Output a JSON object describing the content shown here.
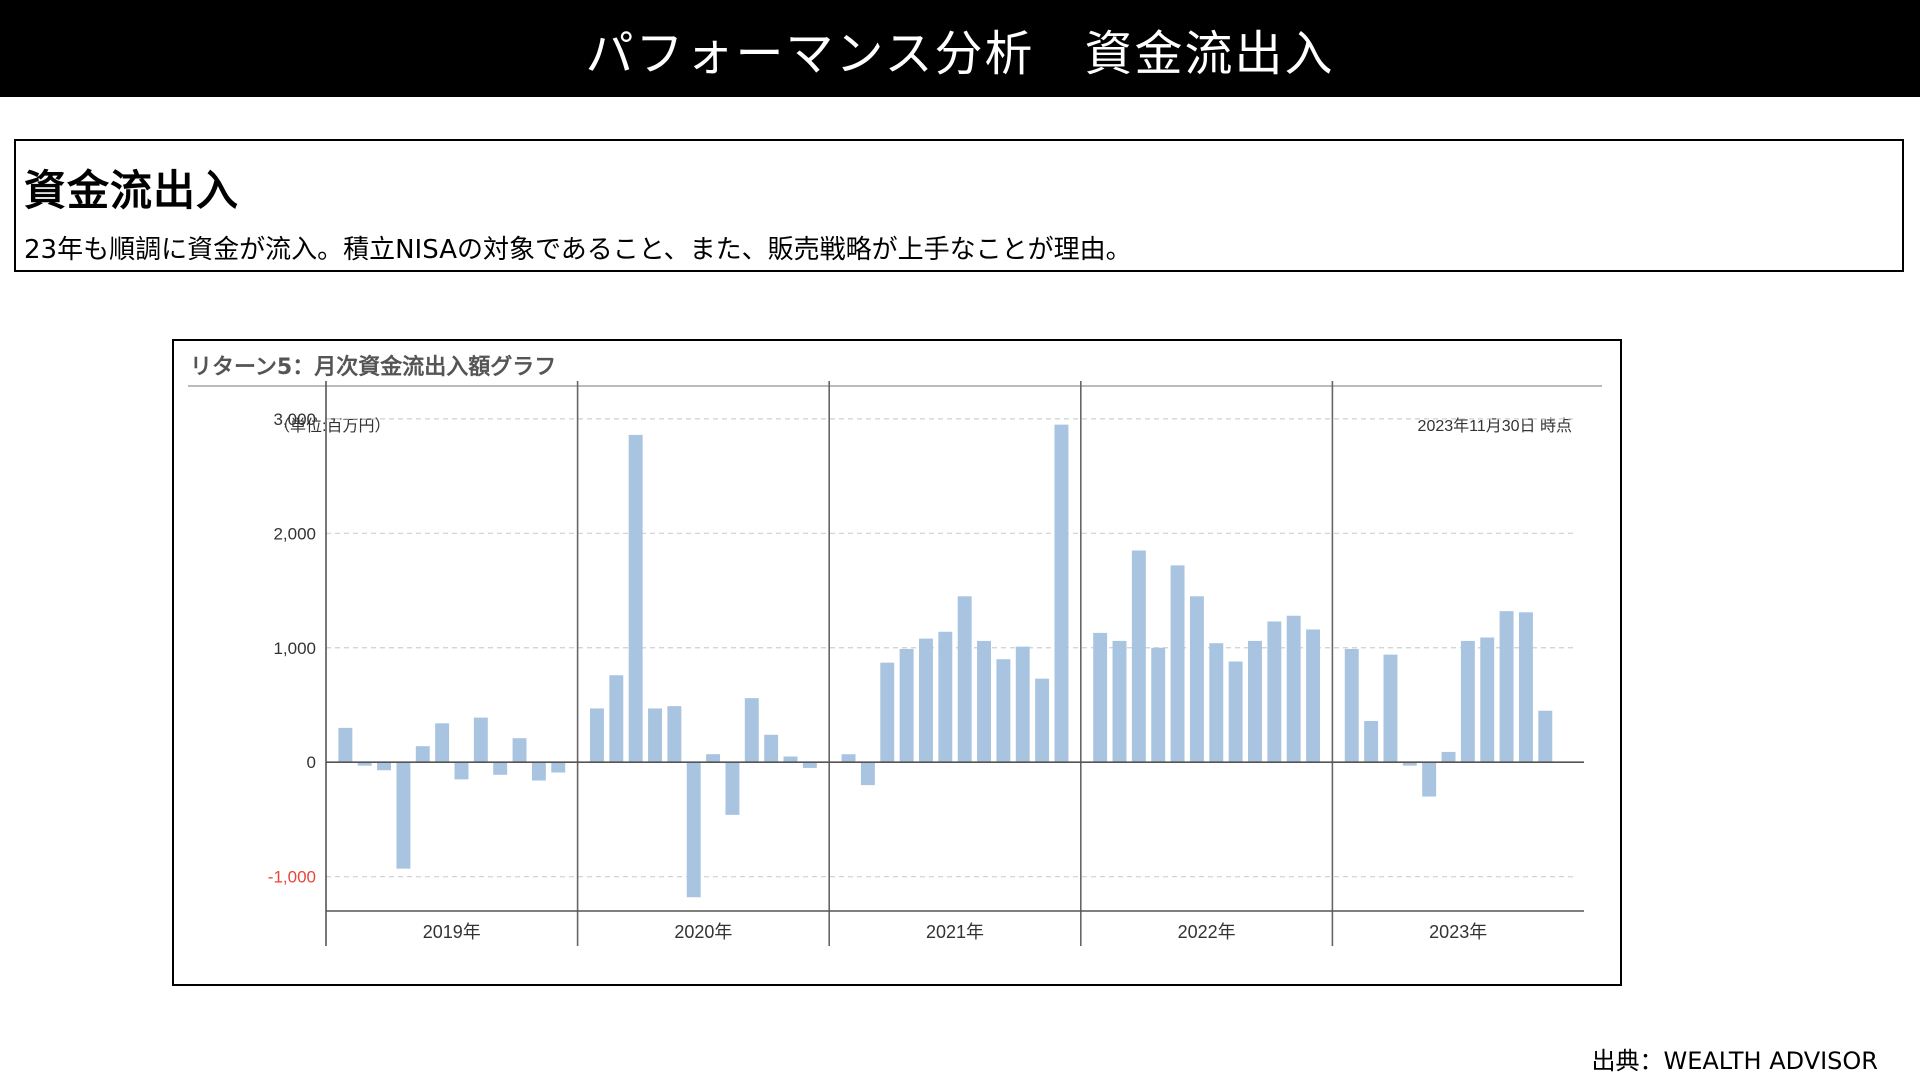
{
  "header": {
    "title": "パフォーマンス分析　資金流出入"
  },
  "summary": {
    "heading": "資金流出入",
    "text": "23年も順調に資金が流入。積立NISAの対象であること、また、販売戦略が上手なことが理由。"
  },
  "chart_data": {
    "type": "bar",
    "title": "リターン5：月次資金流出入額グラフ",
    "unit_label": "（単位:百万円）",
    "as_of": "2023年11月30日 時点",
    "ylim": [
      -1300,
      3200
    ],
    "yticks": [
      {
        "value": 3000,
        "label": "3,000"
      },
      {
        "value": 2000,
        "label": "2,000"
      },
      {
        "value": 1000,
        "label": "1,000"
      },
      {
        "value": 0,
        "label": "0"
      },
      {
        "value": -1000,
        "label": "-1,000"
      }
    ],
    "negative_tick_color": "#e8453c",
    "bar_color": "#a9c4e0",
    "grid": true,
    "years": [
      {
        "label": "2019年",
        "values": [
          300,
          -30,
          -70,
          -930,
          140,
          340,
          -150,
          390,
          -110,
          210,
          -160,
          -90
        ]
      },
      {
        "label": "2020年",
        "values": [
          470,
          760,
          2860,
          470,
          490,
          -1180,
          70,
          -460,
          560,
          240,
          50,
          -50
        ]
      },
      {
        "label": "2021年",
        "values": [
          70,
          -200,
          870,
          990,
          1080,
          1140,
          1450,
          1060,
          900,
          1010,
          730,
          2950
        ]
      },
      {
        "label": "2022年",
        "values": [
          1130,
          1060,
          1850,
          1000,
          1720,
          1450,
          1040,
          880,
          1060,
          1230,
          1280,
          1160
        ]
      },
      {
        "label": "2023年",
        "values": [
          990,
          360,
          940,
          -30,
          -300,
          90,
          1060,
          1090,
          1320,
          1310,
          450
        ]
      }
    ]
  },
  "source": "出典：WEALTH ADVISOR"
}
